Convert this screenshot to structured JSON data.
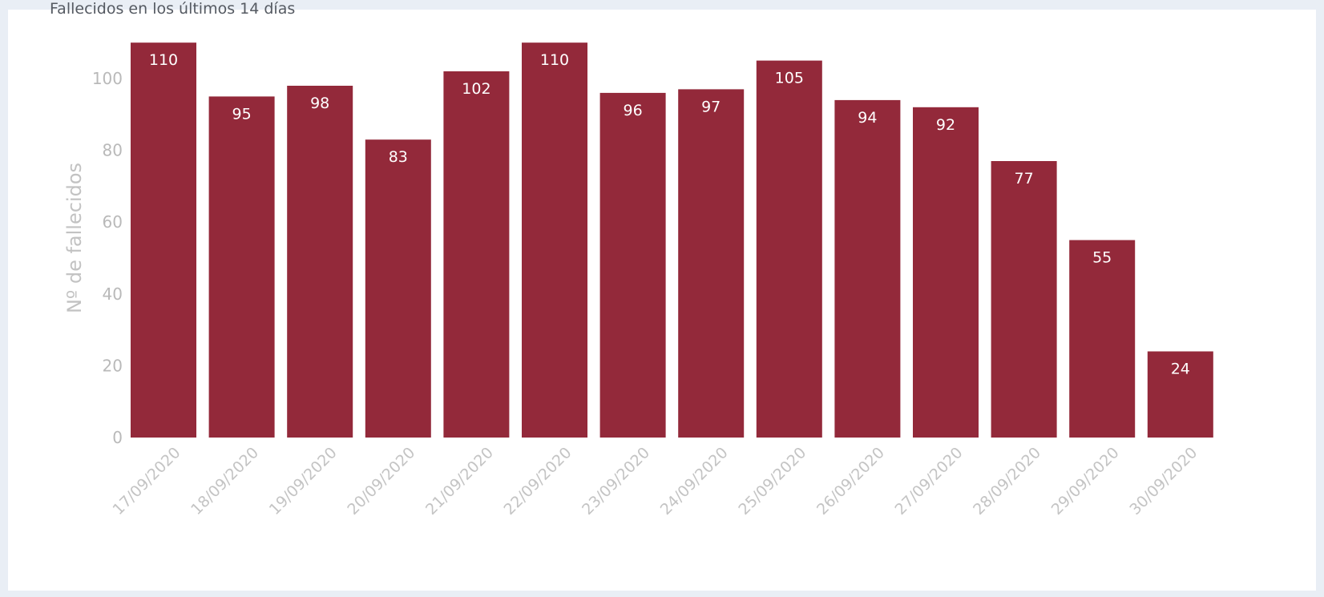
{
  "header": {
    "caption": "Fallecidos en los últimos 14 días"
  },
  "colors": {
    "bar": "#93293a",
    "bar_label": "#ffffff",
    "axis_text": "#bdbdbd",
    "background": "#ffffff"
  },
  "chart_data": {
    "type": "bar",
    "title": "",
    "xlabel": "",
    "ylabel": "Nº de fallecidos",
    "categories": [
      "17/09/2020",
      "18/09/2020",
      "19/09/2020",
      "20/09/2020",
      "21/09/2020",
      "22/09/2020",
      "23/09/2020",
      "24/09/2020",
      "25/09/2020",
      "26/09/2020",
      "27/09/2020",
      "28/09/2020",
      "29/09/2020",
      "30/09/2020"
    ],
    "values": [
      110,
      95,
      98,
      83,
      102,
      110,
      96,
      97,
      105,
      94,
      92,
      77,
      55,
      24
    ],
    "yticks": [
      0,
      20,
      40,
      60,
      80,
      100
    ],
    "ylim": [
      0,
      110
    ],
    "grid": false,
    "legend": "none",
    "data_labels": true
  }
}
